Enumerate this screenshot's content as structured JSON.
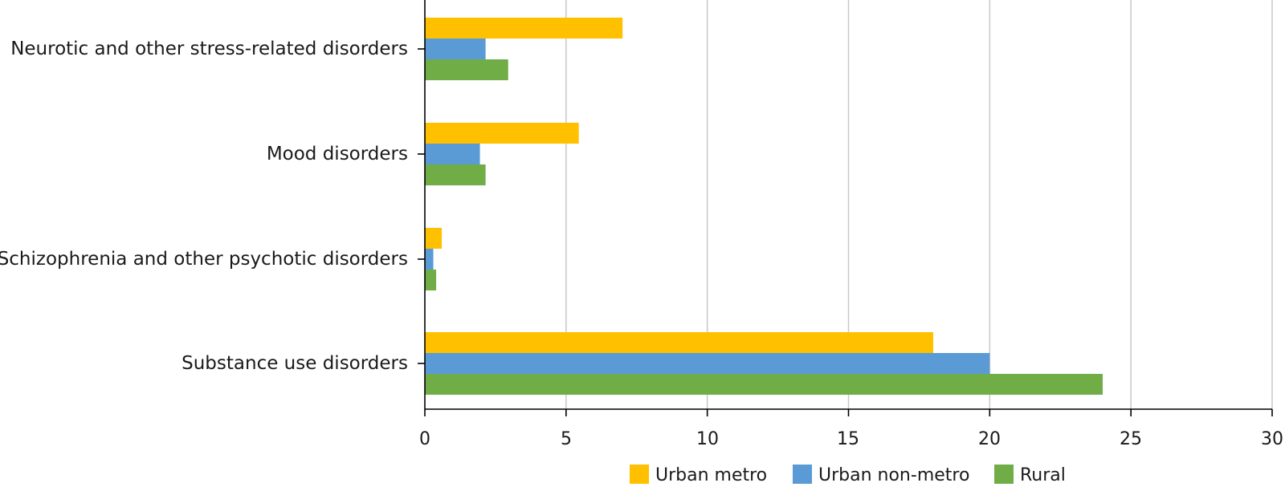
{
  "chart_data": {
    "type": "bar",
    "orientation": "horizontal",
    "categories": [
      "Neurotic and other stress-related disorders",
      "Mood disorders",
      "Schizophrenia and other psychotic disorders",
      "Substance use disorders"
    ],
    "series": [
      {
        "name": "Urban metro",
        "color": "#FFC000",
        "values": [
          7.0,
          5.45,
          0.6,
          18.0
        ]
      },
      {
        "name": "Urban non-metro",
        "color": "#5B9BD5",
        "values": [
          2.15,
          1.95,
          0.3,
          20.0
        ]
      },
      {
        "name": "Rural",
        "color": "#70AD47",
        "values": [
          2.95,
          2.15,
          0.4,
          24.0
        ]
      }
    ],
    "xlim": [
      0,
      30
    ],
    "xticks": [
      "0",
      "5",
      "10",
      "15",
      "20",
      "25",
      "30"
    ],
    "grid": "vertical",
    "legend_position": "bottom"
  }
}
